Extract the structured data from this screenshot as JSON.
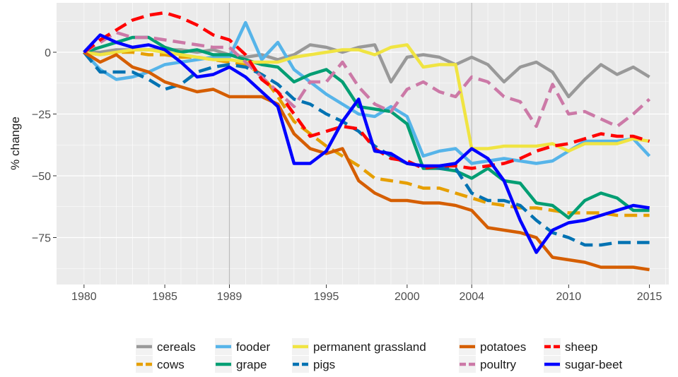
{
  "chart_data": {
    "type": "line",
    "title": "",
    "xlabel": "",
    "ylabel": "% change",
    "xlim": [
      1978.3,
      2016.2
    ],
    "ylim": [
      -94,
      20
    ],
    "x_ticks": [
      1980,
      1985,
      1989,
      1995,
      2000,
      2004,
      2010,
      2015
    ],
    "y_ticks": [
      0,
      -25,
      -50,
      -75
    ],
    "vlines": [
      1989,
      2004
    ],
    "grid": true,
    "legend": "bottom",
    "x": [
      1980,
      1981,
      1982,
      1983,
      1984,
      1985,
      1986,
      1987,
      1988,
      1989,
      1990,
      1991,
      1992,
      1993,
      1994,
      1995,
      1996,
      1997,
      1998,
      1999,
      2000,
      2001,
      2002,
      2003,
      2004,
      2005,
      2006,
      2007,
      2008,
      2009,
      2010,
      2011,
      2012,
      2013,
      2014,
      2015
    ],
    "series": [
      {
        "name": "cereals",
        "color": "#999999",
        "dash": "solid",
        "values": [
          0,
          0,
          1,
          1,
          1,
          1,
          1,
          0,
          1,
          -1,
          -2,
          -1,
          -3,
          -1,
          3,
          2,
          0,
          2,
          3,
          -12,
          -2,
          -1,
          -2,
          -5,
          -2,
          -5,
          -12,
          -6,
          -4,
          -8,
          -18,
          -11,
          -5,
          -9,
          -6,
          -10
        ]
      },
      {
        "name": "cows",
        "color": "#E69F00",
        "dash": "dashed",
        "values": [
          0,
          -1,
          0,
          0,
          -1,
          -1,
          -2,
          -2,
          -3,
          -4,
          -5,
          -9,
          -18,
          -28,
          -33,
          -38,
          -42,
          -46,
          -51,
          -52,
          -53,
          -55,
          -55,
          -57,
          -59,
          -61,
          -62,
          -63,
          -63,
          -64,
          -65,
          -65,
          -65,
          -66,
          -66,
          -66
        ]
      },
      {
        "name": "fooder",
        "color": "#56B4E9",
        "dash": "solid",
        "values": [
          0,
          -7,
          -11,
          -10,
          -8,
          -5,
          -4,
          -3,
          -2,
          -2,
          12,
          -3,
          4,
          -7,
          -12,
          -17,
          -21,
          -25,
          -26,
          -22,
          -26,
          -42,
          -40,
          -39,
          -45,
          -44,
          -43,
          -44,
          -45,
          -44,
          -40,
          -36,
          -36,
          -36,
          -35,
          -42
        ]
      },
      {
        "name": "grape",
        "color": "#009E73",
        "dash": "solid",
        "values": [
          0,
          2,
          4,
          6,
          6,
          2,
          0,
          1,
          -1,
          -1,
          -3,
          -5,
          -6,
          -12,
          -9,
          -7,
          -12,
          -22,
          -23,
          -24,
          -29,
          -47,
          -47,
          -48,
          -51,
          -47,
          -52,
          -53,
          -61,
          -62,
          -67,
          -60,
          -57,
          -59,
          -64,
          -64
        ]
      },
      {
        "name": "permanent grassland",
        "color": "#F0E442",
        "dash": "solid",
        "values": [
          0,
          -1,
          0,
          1,
          1,
          0,
          -1,
          -2,
          -3,
          -3,
          -4,
          -4,
          -4,
          -2,
          -1,
          0,
          1,
          1,
          -1,
          2,
          3,
          -6,
          -5,
          -5,
          -39,
          -39,
          -38,
          -38,
          -38,
          -37,
          -40,
          -37,
          -37,
          -37,
          -35,
          -36
        ]
      },
      {
        "name": "pigs",
        "color": "#0072B2",
        "dash": "dashed",
        "values": [
          0,
          -8,
          -8,
          -8,
          -11,
          -15,
          -13,
          -8,
          -6,
          -5,
          -6,
          -9,
          -13,
          -19,
          -21,
          -25,
          -28,
          -32,
          -38,
          -42,
          -45,
          -46,
          -47,
          -47,
          -57,
          -60,
          -60,
          -62,
          -68,
          -73,
          -75,
          -78,
          -78,
          -77,
          -77,
          -77
        ]
      },
      {
        "name": "potatoes",
        "color": "#D55E00",
        "dash": "solid",
        "values": [
          0,
          -4,
          -1,
          -6,
          -8,
          -12,
          -14,
          -16,
          -15,
          -18,
          -18,
          -18,
          -21,
          -33,
          -39,
          -41,
          -39,
          -52,
          -57,
          -60,
          -60,
          -61,
          -61,
          -62,
          -64,
          -71,
          -72,
          -73,
          -75,
          -83,
          -84,
          -85,
          -87,
          -87,
          -87,
          -88
        ]
      },
      {
        "name": "poultry",
        "color": "#CC79A7",
        "dash": "dashed",
        "values": [
          0,
          4,
          8,
          6,
          6,
          5,
          4,
          3,
          2,
          2,
          -4,
          -10,
          -16,
          -22,
          -12,
          -12,
          -4,
          -14,
          -21,
          -24,
          -15,
          -12,
          -16,
          -18,
          -10,
          -12,
          -18,
          -20,
          -30,
          -13,
          -25,
          -24,
          -27,
          -30,
          -25,
          -19
        ]
      },
      {
        "name": "sheep",
        "color": "#FF0000",
        "dash": "dashed",
        "values": [
          0,
          5,
          9,
          13,
          15,
          16,
          14,
          11,
          7,
          5,
          -1,
          -11,
          -16,
          -25,
          -34,
          -32,
          -30,
          -31,
          -39,
          -43,
          -44,
          -47,
          -46,
          -46,
          -47,
          -46,
          -45,
          -43,
          -40,
          -38,
          -37,
          -35,
          -33,
          -34,
          -34,
          -36
        ]
      },
      {
        "name": "sugar-beet",
        "color": "#0000FF",
        "dash": "solid",
        "values": [
          0,
          7,
          4,
          2,
          3,
          1,
          -4,
          -10,
          -9,
          -6,
          -10,
          -16,
          -22,
          -45,
          -45,
          -40,
          -28,
          -19,
          -40,
          -41,
          -45,
          -46,
          -46,
          -45,
          -39,
          -43,
          -52,
          -68,
          -81,
          -72,
          -69,
          -68,
          -66,
          -64,
          -62,
          -63
        ]
      }
    ]
  }
}
